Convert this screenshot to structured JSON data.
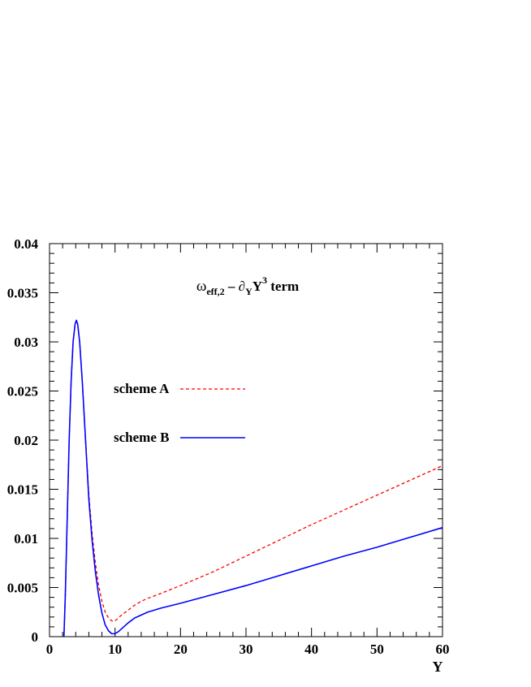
{
  "chart_data": {
    "type": "line",
    "title": {
      "omega": "ω",
      "sub1": "eff,2",
      "mid": " – ∂",
      "sub2": "Y",
      "y": "Y",
      "sup": "3",
      "rest": " term"
    },
    "xlabel": "Y",
    "ylabel": "",
    "xlim": [
      0,
      60
    ],
    "ylim": [
      0,
      0.04
    ],
    "x_ticks": [
      0,
      10,
      20,
      30,
      40,
      50,
      60
    ],
    "x_tick_labels": [
      "0",
      "10",
      "20",
      "30",
      "40",
      "50",
      "60"
    ],
    "y_ticks": [
      0,
      0.005,
      0.01,
      0.015,
      0.02,
      0.025,
      0.03,
      0.035,
      0.04
    ],
    "y_tick_labels": [
      "0",
      "0.005",
      "0.01",
      "0.015",
      "0.02",
      "0.025",
      "0.03",
      "0.035",
      "0.04"
    ],
    "legend_position": "upper-left",
    "grid": false,
    "series": [
      {
        "name": "scheme A",
        "color": "#ff0000",
        "dash": "dashed",
        "points": [
          [
            2.2,
            0
          ],
          [
            2.4,
            0.004
          ],
          [
            2.7,
            0.012
          ],
          [
            3.0,
            0.02
          ],
          [
            3.3,
            0.026
          ],
          [
            3.6,
            0.03
          ],
          [
            3.9,
            0.0318
          ],
          [
            4.1,
            0.0322
          ],
          [
            4.3,
            0.0318
          ],
          [
            4.6,
            0.03
          ],
          [
            5.0,
            0.026
          ],
          [
            5.5,
            0.02
          ],
          [
            6.0,
            0.0145
          ],
          [
            6.5,
            0.0105
          ],
          [
            7.0,
            0.0075
          ],
          [
            7.5,
            0.0052
          ],
          [
            8.0,
            0.0036
          ],
          [
            8.5,
            0.0025
          ],
          [
            9.0,
            0.0019
          ],
          [
            9.5,
            0.0016
          ],
          [
            10.0,
            0.0016
          ],
          [
            10.5,
            0.0019
          ],
          [
            11.0,
            0.0022
          ],
          [
            12.0,
            0.0027
          ],
          [
            13.0,
            0.0032
          ],
          [
            14.0,
            0.0036
          ],
          [
            15.0,
            0.0039
          ],
          [
            17.0,
            0.0044
          ],
          [
            20.0,
            0.0052
          ],
          [
            25.0,
            0.0066
          ],
          [
            30.0,
            0.0082
          ],
          [
            35.0,
            0.0098
          ],
          [
            40.0,
            0.0114
          ],
          [
            45.0,
            0.0129
          ],
          [
            50.0,
            0.0144
          ],
          [
            55.0,
            0.0159
          ],
          [
            60.0,
            0.0174
          ]
        ]
      },
      {
        "name": "scheme B",
        "color": "#0000ff",
        "dash": "solid",
        "points": [
          [
            2.2,
            0
          ],
          [
            2.4,
            0.004
          ],
          [
            2.7,
            0.012
          ],
          [
            3.0,
            0.02
          ],
          [
            3.3,
            0.026
          ],
          [
            3.6,
            0.03
          ],
          [
            3.9,
            0.0318
          ],
          [
            4.1,
            0.0322
          ],
          [
            4.3,
            0.0318
          ],
          [
            4.6,
            0.03
          ],
          [
            5.0,
            0.026
          ],
          [
            5.5,
            0.02
          ],
          [
            6.0,
            0.014
          ],
          [
            6.5,
            0.0098
          ],
          [
            7.0,
            0.0066
          ],
          [
            7.5,
            0.0042
          ],
          [
            8.0,
            0.0024
          ],
          [
            8.5,
            0.0012
          ],
          [
            9.0,
            0.0006
          ],
          [
            9.5,
            0.0003
          ],
          [
            10.0,
            0.0003
          ],
          [
            10.5,
            0.0005
          ],
          [
            11.0,
            0.0008
          ],
          [
            12.0,
            0.0014
          ],
          [
            13.0,
            0.0019
          ],
          [
            14.0,
            0.0022
          ],
          [
            15.0,
            0.0025
          ],
          [
            17.0,
            0.0029
          ],
          [
            20.0,
            0.0034
          ],
          [
            25.0,
            0.0043
          ],
          [
            30.0,
            0.0052
          ],
          [
            35.0,
            0.0062
          ],
          [
            40.0,
            0.0072
          ],
          [
            45.0,
            0.0082
          ],
          [
            50.0,
            0.0091
          ],
          [
            55.0,
            0.0101
          ],
          [
            60.0,
            0.0111
          ]
        ]
      }
    ]
  }
}
